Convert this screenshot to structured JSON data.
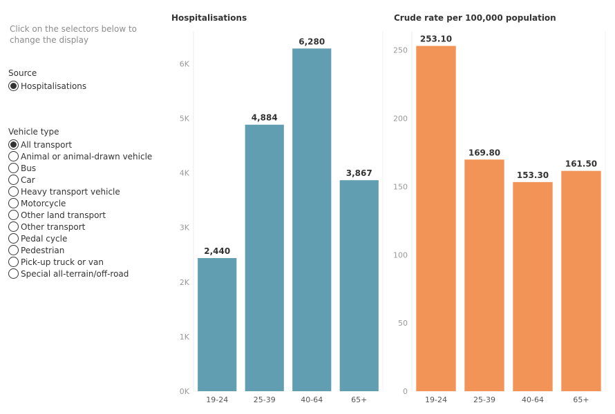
{
  "instructions": "Click on the selectors below to change the display",
  "source": {
    "title": "Source",
    "options": [
      {
        "label": "Hospitalisations",
        "selected": true
      }
    ]
  },
  "vehicle_type": {
    "title": "Vehicle type",
    "options": [
      {
        "label": "All transport",
        "selected": true
      },
      {
        "label": "Animal or animal-drawn vehicle",
        "selected": false
      },
      {
        "label": "Bus",
        "selected": false
      },
      {
        "label": "Car",
        "selected": false
      },
      {
        "label": "Heavy transport vehicle",
        "selected": false
      },
      {
        "label": "Motorcycle",
        "selected": false
      },
      {
        "label": "Other land transport",
        "selected": false
      },
      {
        "label": "Other transport",
        "selected": false
      },
      {
        "label": "Pedal cycle",
        "selected": false
      },
      {
        "label": "Pedestrian",
        "selected": false
      },
      {
        "label": "Pick-up truck or van",
        "selected": false
      },
      {
        "label": "Special all-terrain/off-road",
        "selected": false
      }
    ]
  },
  "chart_data": [
    {
      "type": "bar",
      "title": "Hospitalisations",
      "categories": [
        "19-24",
        "25-39",
        "40-64",
        "65+"
      ],
      "values": [
        2440,
        4884,
        6280,
        3867
      ],
      "value_labels": [
        "2,440",
        "4,884",
        "6,280",
        "3,867"
      ],
      "ylim": [
        0,
        6600
      ],
      "yticks": [
        0,
        1000,
        2000,
        3000,
        4000,
        5000,
        6000
      ],
      "ytick_labels": [
        "0K",
        "1K",
        "2K",
        "3K",
        "4K",
        "5K",
        "6K"
      ],
      "color": "#619eb2",
      "grid": false
    },
    {
      "type": "bar",
      "title": "Crude rate per 100,000 population",
      "categories": [
        "19-24",
        "25-39",
        "40-64",
        "65+"
      ],
      "values": [
        253.1,
        169.8,
        153.3,
        161.5
      ],
      "value_labels": [
        "253.10",
        "169.80",
        "153.30",
        "161.50"
      ],
      "ylim": [
        0,
        264
      ],
      "yticks": [
        0,
        50,
        100,
        150,
        200,
        250
      ],
      "ytick_labels": [
        "0",
        "50",
        "100",
        "150",
        "200",
        "250"
      ],
      "color": "#f29457",
      "grid": false
    }
  ]
}
